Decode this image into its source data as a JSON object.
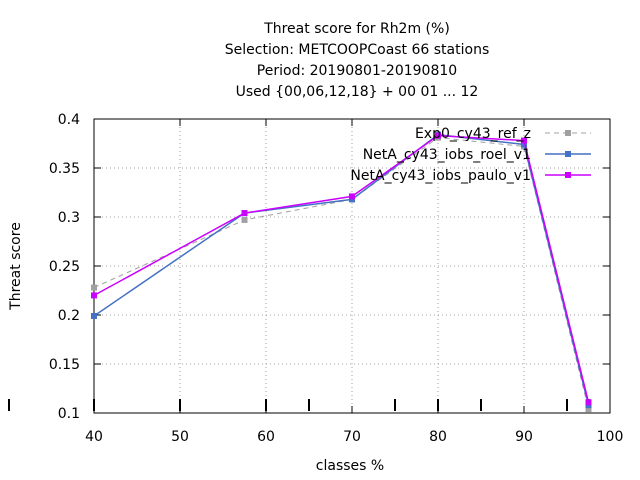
{
  "chart_data": {
    "type": "line",
    "title": [
      "Threat score  for Rh2m (%)",
      "Selection: METCOOPCoast     66 stations",
      "Period: 20190801-20190810",
      "Used {00,06,12,18} + 00 01 ... 12"
    ],
    "xlabel": "classes %",
    "ylabel": "Threat score",
    "xlim": [
      40,
      100
    ],
    "ylim": [
      0.1,
      0.4
    ],
    "xticks": [
      40,
      50,
      60,
      70,
      80,
      90,
      100
    ],
    "yticks": [
      0.1,
      0.15,
      0.2,
      0.25,
      0.3,
      0.35,
      0.4
    ],
    "ytick_labels": [
      "0.1",
      "0.15",
      "0.2",
      "0.25",
      "0.3",
      "0.35",
      "0.4"
    ],
    "grid": true,
    "legend_position": "top-right",
    "observation_marks_x": [
      40,
      50,
      60,
      65,
      75,
      80,
      85,
      95,
      97.5
    ],
    "series": [
      {
        "name": "Exp0_cy43_ref_z",
        "color": "#a0a0a0",
        "dash": true,
        "x": [
          40,
          57.5,
          70,
          80,
          90,
          97.5
        ],
        "y": [
          0.228,
          0.297,
          0.318,
          0.381,
          0.372,
          0.104
        ]
      },
      {
        "name": "NetA_cy43_iobs_roel_v1",
        "color": "#4472c4",
        "dash": false,
        "x": [
          40,
          57.5,
          70,
          80,
          90,
          97.5
        ],
        "y": [
          0.199,
          0.304,
          0.318,
          0.384,
          0.374,
          0.108
        ]
      },
      {
        "name": "NetA_cy43_iobs_paulo_v1",
        "color": "#cc00ff",
        "dash": false,
        "x": [
          40,
          57.5,
          70,
          80,
          90,
          97.5
        ],
        "y": [
          0.22,
          0.304,
          0.321,
          0.383,
          0.378,
          0.111
        ]
      }
    ]
  }
}
